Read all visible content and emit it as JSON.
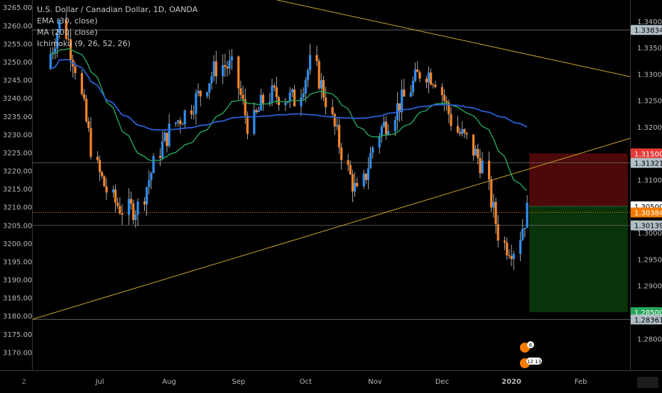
{
  "header": {
    "symbol_title": "U.S. Dollar / Canadian Dollar, 1D, OANDA",
    "indicators": [
      "EMA (30, close)",
      "MA (200, close)",
      "Ichimoku (9, 26, 52, 26)"
    ]
  },
  "colors": {
    "background": "#000000",
    "up_candle": "#2e8ef0",
    "down_candle": "#f5852a",
    "ema": "#26a65b",
    "ma": "#2a5fd6",
    "trendline": "#c9a227",
    "stop_zone": "#5a0a0a",
    "target_zone": "#0a3d0a",
    "badge_red": "#e53935",
    "badge_orange": "#f57c00",
    "badge_gray": "#b0bec5",
    "badge_green": "#26a65b"
  },
  "left_axis": {
    "labels": [
      "3265.00",
      "3260.00",
      "3255.00",
      "3250.00",
      "3245.00",
      "3240.00",
      "3235.00",
      "3230.00",
      "3225.00",
      "3220.00",
      "3215.00",
      "3210.00",
      "3205.00",
      "3200.00",
      "3195.00",
      "3190.00",
      "3185.00",
      "3180.00",
      "3175.00",
      "3170.00"
    ],
    "min": 3165,
    "max": 3267
  },
  "right_axis": {
    "labels": [
      "1.34000",
      "1.33500",
      "1.33000",
      "1.32500",
      "1.32000",
      "1.31000",
      "1.30000",
      "1.29500",
      "1.29000",
      "1.28000"
    ],
    "values": [
      1.34,
      1.335,
      1.33,
      1.325,
      1.32,
      1.31,
      1.3,
      1.295,
      1.29,
      1.28
    ],
    "badges": [
      {
        "text": "1.33834",
        "value": 1.33834,
        "color": "#b0bec5"
      },
      {
        "text": "1.31500",
        "value": 1.315,
        "color": "#e53935"
      },
      {
        "text": "1.31321",
        "value": 1.31321,
        "color": "#b0bec5"
      },
      {
        "text": "1.30500",
        "value": 1.305,
        "color": "#ffffff"
      },
      {
        "text": "1.30384",
        "value": 1.30384,
        "color": "#f57c00"
      },
      {
        "text": "1.30139",
        "value": 1.30139,
        "color": "#b0bec5"
      },
      {
        "text": "1.28500",
        "value": 1.285,
        "color": "#26a65b"
      },
      {
        "text": "1.28361",
        "value": 1.28361,
        "color": "#b0bec5"
      }
    ]
  },
  "x_axis": {
    "labels": [
      "Jul",
      "Aug",
      "Sep",
      "Oct",
      "Nov",
      "Dec",
      "2020",
      "Feb"
    ]
  },
  "events": {
    "top": "6",
    "bottom": "12 13"
  },
  "chart_data": {
    "type": "line",
    "title": "U.S. Dollar / Canadian Dollar, 1D, OANDA",
    "xlabel": "",
    "ylabel": "",
    "y_range": [
      1.274,
      1.344
    ],
    "grid": false,
    "horizontal_levels": [
      1.33834,
      1.31321,
      1.30139,
      1.28361
    ],
    "current_price": 1.30384,
    "position": {
      "entry": 1.305,
      "stop": 1.315,
      "target": 1.285
    },
    "approx_path": [
      {
        "x": "Jun 7",
        "y": 1.331
      },
      {
        "x": "Jun 14",
        "y": 1.341
      },
      {
        "x": "Jun 21",
        "y": 1.33
      },
      {
        "x": "Jun 28",
        "y": 1.314
      },
      {
        "x": "Jul 5",
        "y": 1.307
      },
      {
        "x": "Jul 12",
        "y": 1.304
      },
      {
        "x": "Jul 19",
        "y": 1.305
      },
      {
        "x": "Jul 26",
        "y": 1.314
      },
      {
        "x": "Aug 2",
        "y": 1.32
      },
      {
        "x": "Aug 9",
        "y": 1.323
      },
      {
        "x": "Aug 16",
        "y": 1.327
      },
      {
        "x": "Aug 23",
        "y": 1.332
      },
      {
        "x": "Aug 30",
        "y": 1.331
      },
      {
        "x": "Sep 6",
        "y": 1.319
      },
      {
        "x": "Sep 13",
        "y": 1.326
      },
      {
        "x": "Sep 20",
        "y": 1.326
      },
      {
        "x": "Sep 27",
        "y": 1.325
      },
      {
        "x": "Oct 4",
        "y": 1.333
      },
      {
        "x": "Oct 11",
        "y": 1.324
      },
      {
        "x": "Oct 18",
        "y": 1.314
      },
      {
        "x": "Oct 25",
        "y": 1.306
      },
      {
        "x": "Nov 1",
        "y": 1.318
      },
      {
        "x": "Nov 8",
        "y": 1.322
      },
      {
        "x": "Nov 15",
        "y": 1.326
      },
      {
        "x": "Nov 22",
        "y": 1.331
      },
      {
        "x": "Nov 29",
        "y": 1.329
      },
      {
        "x": "Dec 6",
        "y": 1.32
      },
      {
        "x": "Dec 13",
        "y": 1.317
      },
      {
        "x": "Dec 20",
        "y": 1.312
      },
      {
        "x": "Dec 27",
        "y": 1.298
      },
      {
        "x": "Jan 3",
        "y": 1.297
      },
      {
        "x": "Jan 8",
        "y": 1.304
      }
    ]
  }
}
